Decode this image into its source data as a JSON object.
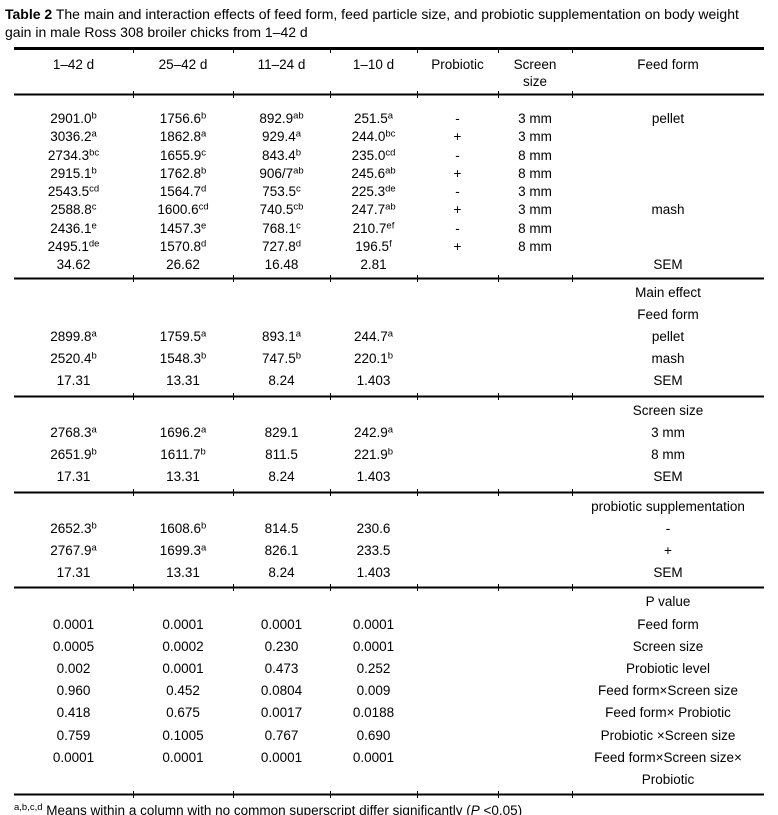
{
  "page": {
    "title_bold": "Table 2",
    "title_rest": "The main and interaction effects of feed form, feed particle size, and probiotic supplementation on body weight gain in male Ross 308 broiler chicks from 1–42 d"
  },
  "colors": {
    "text": "#000000",
    "background": "#ffffff",
    "rule": "#000000"
  },
  "table": {
    "headers": [
      "1–42 d",
      "25–42 d",
      "11–24 d",
      "1–10 d",
      "Probiotic",
      "Screen size",
      "Feed form"
    ],
    "sections": [
      {
        "name": "interaction-means",
        "rows": [
          {
            "cells": [
              {
                "v": "2901.0",
                "sup": "b"
              },
              {
                "v": "1756.6",
                "sup": "b"
              },
              {
                "v": "892.9",
                "sup": "ab"
              },
              {
                "v": "251.5",
                "sup": "a"
              },
              {
                "v": "-"
              },
              {
                "v": "3 mm"
              },
              {
                "v": "pellet"
              }
            ]
          },
          {
            "cells": [
              {
                "v": "3036.2",
                "sup": "a"
              },
              {
                "v": "1862.8",
                "sup": "a"
              },
              {
                "v": "929.4",
                "sup": "a"
              },
              {
                "v": "244.0",
                "sup": "bc"
              },
              {
                "v": "+"
              },
              {
                "v": "3 mm"
              },
              {}
            ]
          },
          {
            "cells": [
              {
                "v": "2734.3",
                "sup": "bc"
              },
              {
                "v": "1655.9",
                "sup": "c"
              },
              {
                "v": "843.4",
                "sup": "b"
              },
              {
                "v": "235.0",
                "sup": "cd"
              },
              {
                "v": "-"
              },
              {
                "v": "8 mm"
              },
              {}
            ]
          },
          {
            "cells": [
              {
                "v": "2915.1",
                "sup": "b"
              },
              {
                "v": "1762.8",
                "sup": "b"
              },
              {
                "v": "906/7",
                "sup": "ab"
              },
              {
                "v": "245.6",
                "sup": "ab"
              },
              {
                "v": "+"
              },
              {
                "v": "8 mm"
              },
              {}
            ]
          },
          {
            "cells": [
              {
                "v": "2543.5",
                "sup": "cd"
              },
              {
                "v": "1564.7",
                "sup": "d"
              },
              {
                "v": "753.5",
                "sup": "c"
              },
              {
                "v": "225.3",
                "sup": "de"
              },
              {
                "v": "-"
              },
              {
                "v": "3 mm"
              },
              {}
            ]
          },
          {
            "cells": [
              {
                "v": "2588.8",
                "sup": "c"
              },
              {
                "v": "1600.6",
                "sup": "cd"
              },
              {
                "v": "740.5",
                "sup": "cb"
              },
              {
                "v": "247.7",
                "sup": "ab"
              },
              {
                "v": "+"
              },
              {
                "v": "3 mm"
              },
              {
                "v": "mash"
              }
            ]
          },
          {
            "cells": [
              {
                "v": "2436.1",
                "sup": "e"
              },
              {
                "v": "1457.3",
                "sup": "e"
              },
              {
                "v": "768.1",
                "sup": "c"
              },
              {
                "v": "210.7",
                "sup": "ef"
              },
              {
                "v": "-"
              },
              {
                "v": "8 mm"
              },
              {}
            ]
          },
          {
            "cells": [
              {
                "v": "2495.1",
                "sup": "de"
              },
              {
                "v": "1570.8",
                "sup": "d"
              },
              {
                "v": "727.8",
                "sup": "d"
              },
              {
                "v": "196.5",
                "sup": "f"
              },
              {
                "v": "+"
              },
              {
                "v": "8 mm"
              },
              {}
            ]
          },
          {
            "cells": [
              {
                "v": "34.62"
              },
              {
                "v": "26.62"
              },
              {
                "v": "16.48"
              },
              {
                "v": "2.81"
              },
              {},
              {},
              {
                "v": "SEM"
              }
            ]
          }
        ]
      },
      {
        "name": "main-effect-feed-form",
        "rows": [
          {
            "cells": [
              {},
              {},
              {},
              {},
              {},
              {},
              {
                "v": "Main effect"
              }
            ]
          },
          {
            "cells": [
              {},
              {},
              {},
              {},
              {},
              {},
              {
                "v": "Feed form"
              }
            ]
          },
          {
            "cells": [
              {
                "v": "2899.8",
                "sup": "a"
              },
              {
                "v": "1759.5",
                "sup": "a"
              },
              {
                "v": "893.1",
                "sup": "a"
              },
              {
                "v": "244.7",
                "sup": "a"
              },
              {},
              {},
              {
                "v": "pellet"
              }
            ]
          },
          {
            "cells": [
              {
                "v": "2520.4",
                "sup": "b"
              },
              {
                "v": "1548.3",
                "sup": "b"
              },
              {
                "v": "747.5",
                "sup": "b"
              },
              {
                "v": "220.1",
                "sup": "b"
              },
              {},
              {},
              {
                "v": "mash"
              }
            ]
          },
          {
            "cells": [
              {
                "v": "17.31"
              },
              {
                "v": "13.31"
              },
              {
                "v": "8.24"
              },
              {
                "v": "1.403"
              },
              {},
              {},
              {
                "v": "SEM"
              }
            ]
          }
        ]
      },
      {
        "name": "main-effect-screen-size",
        "rows": [
          {
            "cells": [
              {},
              {},
              {},
              {},
              {},
              {},
              {
                "v": "Screen size"
              }
            ]
          },
          {
            "cells": [
              {
                "v": "2768.3",
                "sup": "a"
              },
              {
                "v": "1696.2",
                "sup": "a"
              },
              {
                "v": "829.1"
              },
              {
                "v": "242.9",
                "sup": "a"
              },
              {},
              {},
              {
                "v": "3 mm"
              }
            ]
          },
          {
            "cells": [
              {
                "v": "2651.9",
                "sup": "b"
              },
              {
                "v": "1611.7",
                "sup": "b"
              },
              {
                "v": "811.5"
              },
              {
                "v": "221.9",
                "sup": "b"
              },
              {},
              {},
              {
                "v": "8 mm"
              }
            ]
          },
          {
            "cells": [
              {
                "v": "17.31"
              },
              {
                "v": "13.31"
              },
              {
                "v": "8.24"
              },
              {
                "v": "1.403"
              },
              {},
              {},
              {
                "v": "SEM"
              }
            ]
          }
        ]
      },
      {
        "name": "main-effect-probiotic",
        "rows": [
          {
            "cells": [
              {},
              {},
              {},
              {},
              {},
              {},
              {
                "v": "probiotic supplementation"
              }
            ]
          },
          {
            "cells": [
              {
                "v": "2652.3",
                "sup": "b"
              },
              {
                "v": "1608.6",
                "sup": "b"
              },
              {
                "v": "814.5"
              },
              {
                "v": "230.6"
              },
              {},
              {},
              {
                "v": "-"
              }
            ]
          },
          {
            "cells": [
              {
                "v": "2767.9",
                "sup": "a"
              },
              {
                "v": "1699.3",
                "sup": "a"
              },
              {
                "v": "826.1"
              },
              {
                "v": "233.5"
              },
              {},
              {},
              {
                "v": "+"
              }
            ]
          },
          {
            "cells": [
              {
                "v": "17.31"
              },
              {
                "v": "13.31"
              },
              {
                "v": "8.24"
              },
              {
                "v": "1.403"
              },
              {},
              {},
              {
                "v": "SEM"
              }
            ]
          }
        ]
      },
      {
        "name": "p-values",
        "rows": [
          {
            "cells": [
              {},
              {},
              {},
              {},
              {},
              {},
              {
                "v": "P value"
              }
            ]
          },
          {
            "cells": [
              {
                "v": "0.0001"
              },
              {
                "v": "0.0001"
              },
              {
                "v": "0.0001"
              },
              {
                "v": "0.0001"
              },
              {},
              {},
              {
                "v": "Feed form"
              }
            ]
          },
          {
            "cells": [
              {
                "v": "0.0005"
              },
              {
                "v": "0.0002"
              },
              {
                "v": "0.230"
              },
              {
                "v": "0.0001"
              },
              {},
              {},
              {
                "v": "Screen size"
              }
            ]
          },
          {
            "cells": [
              {
                "v": "0.002"
              },
              {
                "v": "0.0001"
              },
              {
                "v": "0.473"
              },
              {
                "v": "0.252"
              },
              {},
              {},
              {
                "v": "Probiotic level"
              }
            ]
          },
          {
            "cells": [
              {
                "v": "0.960"
              },
              {
                "v": "0.452"
              },
              {
                "v": "0.0804"
              },
              {
                "v": "0.009"
              },
              {},
              {},
              {
                "v": "Feed form×Screen size"
              }
            ]
          },
          {
            "cells": [
              {
                "v": "0.418"
              },
              {
                "v": "0.675"
              },
              {
                "v": "0.0017"
              },
              {
                "v": "0.0188"
              },
              {},
              {},
              {
                "v": "Feed form× Probiotic"
              }
            ]
          },
          {
            "cells": [
              {
                "v": "0.759"
              },
              {
                "v": "0.1005"
              },
              {
                "v": "0.767"
              },
              {
                "v": "0.690"
              },
              {},
              {},
              {
                "v": "Probiotic ×Screen size"
              }
            ]
          },
          {
            "cells": [
              {
                "v": "0.0001"
              },
              {
                "v": "0.0001"
              },
              {
                "v": "0.0001"
              },
              {
                "v": "0.0001"
              },
              {},
              {},
              {
                "v": "Feed form×Screen size× Probiotic"
              }
            ]
          }
        ]
      }
    ]
  },
  "footnote": {
    "sup": "a,b,c,d",
    "pre": " Means within a column with no common superscript differ significantly (",
    "italic": "P",
    "post": " <0.05)"
  }
}
